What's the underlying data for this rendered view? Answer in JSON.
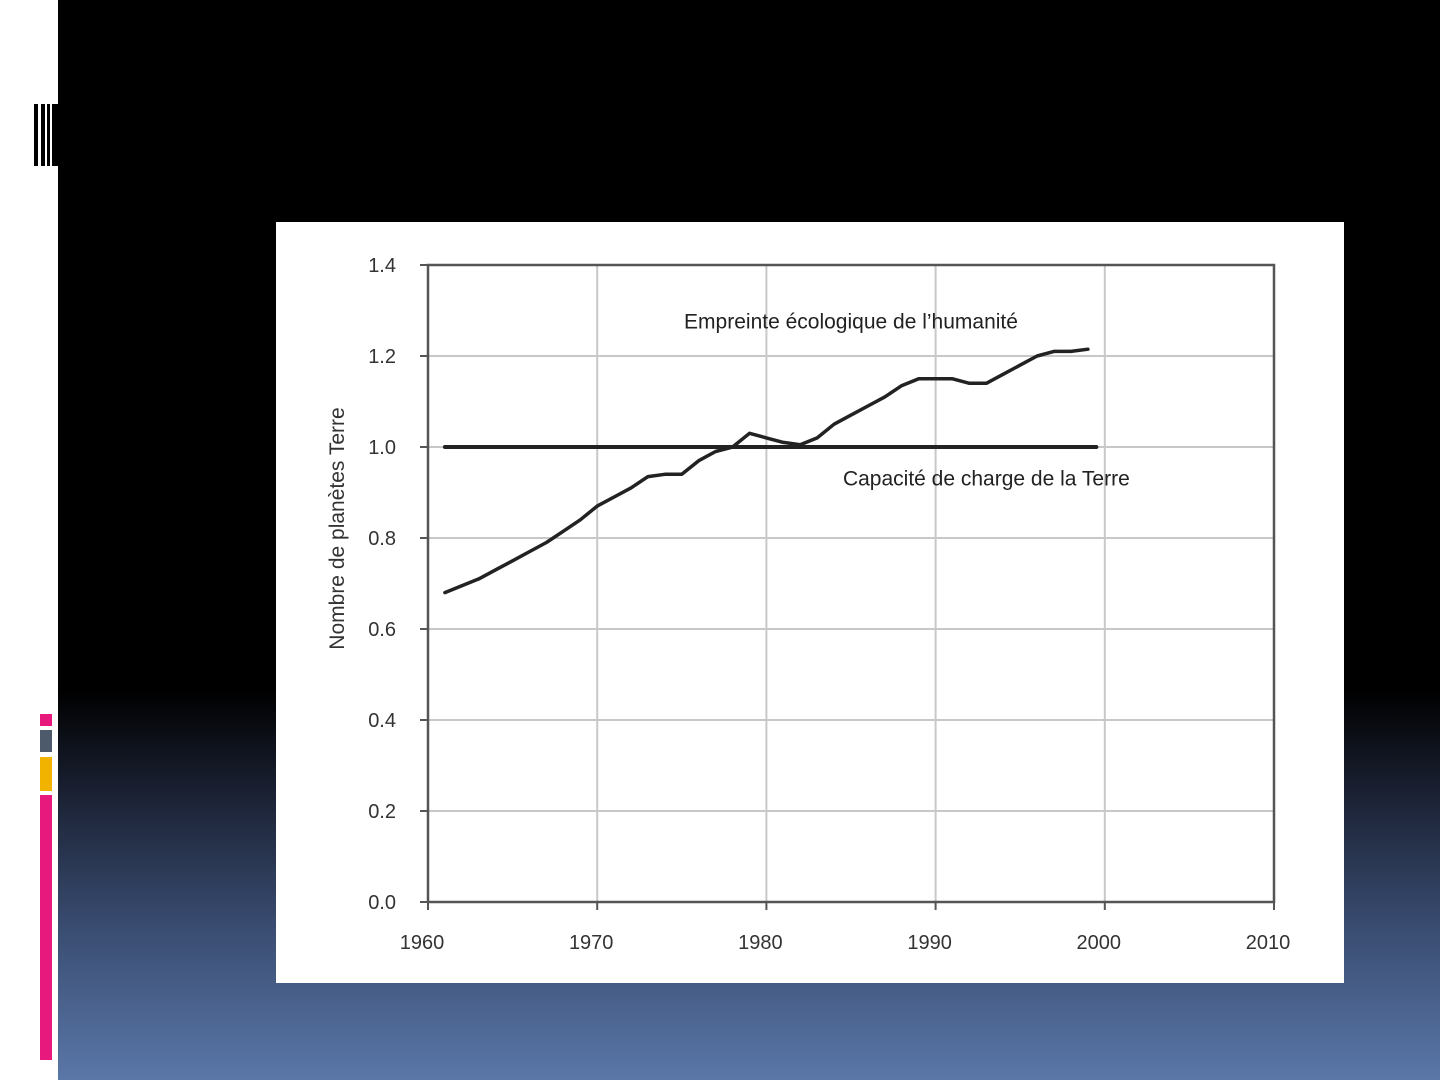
{
  "slide": {
    "accent_colors": {
      "magenta": "#e8197c",
      "slate": "#4c5a6c",
      "gold": "#f2b200"
    }
  },
  "chart_data": {
    "type": "line",
    "title": "",
    "xlabel": "",
    "ylabel": "Nombre de planètes Terre",
    "xlim": [
      1960,
      2010
    ],
    "ylim": [
      0.0,
      1.4
    ],
    "x_ticks": [
      "1960",
      "1970",
      "1980",
      "1990",
      "2000",
      "2010"
    ],
    "y_ticks": [
      "0.0",
      "0.2",
      "0.4",
      "0.6",
      "0.8",
      "1.0",
      "1.2",
      "1.4"
    ],
    "grid": true,
    "legend": "none",
    "series": [
      {
        "name": "Empreinte écologique de l'humanité",
        "x": [
          1961,
          1962,
          1963,
          1964,
          1965,
          1966,
          1967,
          1968,
          1969,
          1970,
          1971,
          1972,
          1973,
          1974,
          1975,
          1976,
          1977,
          1978,
          1979,
          1980,
          1981,
          1982,
          1983,
          1984,
          1985,
          1986,
          1987,
          1988,
          1989,
          1990,
          1991,
          1992,
          1993,
          1994,
          1995,
          1996,
          1997,
          1998,
          1999
        ],
        "y": [
          0.68,
          0.695,
          0.71,
          0.73,
          0.75,
          0.77,
          0.79,
          0.815,
          0.84,
          0.87,
          0.89,
          0.91,
          0.935,
          0.94,
          0.94,
          0.97,
          0.99,
          1.0,
          1.03,
          1.02,
          1.01,
          1.005,
          1.02,
          1.05,
          1.07,
          1.09,
          1.11,
          1.135,
          1.15,
          1.15,
          1.15,
          1.14,
          1.14,
          1.16,
          1.18,
          1.2,
          1.21,
          1.21,
          1.215
        ]
      },
      {
        "name": "Capacité de charge de la Terre",
        "x": [
          1961,
          1999.5
        ],
        "y": [
          1.0,
          1.0
        ]
      }
    ],
    "annotations": [
      {
        "text": "Empreinte écologique de l’humanité",
        "x": 1985,
        "y": 1.26
      },
      {
        "text": "Capacité de charge de la Terre",
        "x": 1993,
        "y": 0.915
      }
    ]
  }
}
